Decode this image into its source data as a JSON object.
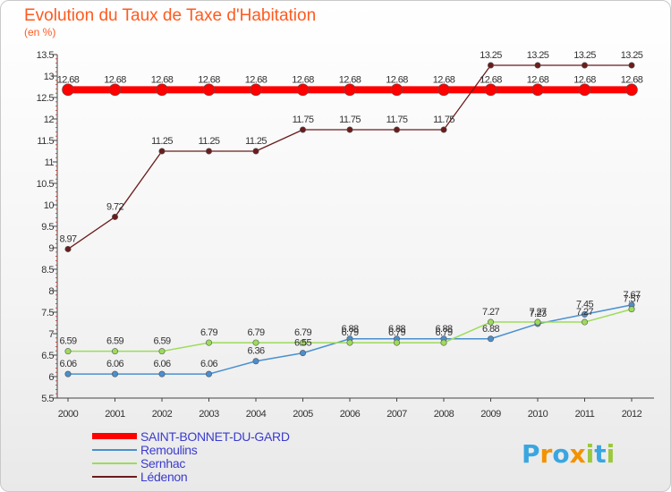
{
  "title": "Evolution du Taux de Taxe d'Habitation",
  "subtitle": "(en %)",
  "logo": {
    "letters": [
      "P",
      "r",
      "o",
      "x",
      "i",
      "t",
      "i"
    ],
    "colors": [
      "#3aa6e0",
      "#f39200",
      "#3aa6e0",
      "#f39200",
      "#9bc83c",
      "#3aa6e0",
      "#9bc83c"
    ]
  },
  "chart_data": {
    "type": "line",
    "x": [
      "2000",
      "2001",
      "2002",
      "2003",
      "2004",
      "2005",
      "2006",
      "2007",
      "2008",
      "2009",
      "2010",
      "2011",
      "2012"
    ],
    "ylim": [
      5.5,
      13.5
    ],
    "yticks": [
      "5.5",
      "6",
      "6.5",
      "7",
      "7.5",
      "8",
      "8.5",
      "9",
      "9.5",
      "10",
      "10.5",
      "11",
      "11.5",
      "12",
      "12.5",
      "13",
      "13.5"
    ],
    "grid": false,
    "legend_position": "bottom-left",
    "series": [
      {
        "name": "SAINT-BONNET-DU-GARD",
        "color": "#ff0000",
        "values": [
          12.68,
          12.68,
          12.68,
          12.68,
          12.68,
          12.68,
          12.68,
          12.68,
          12.68,
          12.68,
          12.68,
          12.68,
          12.68
        ],
        "labels": [
          "12.68",
          "12.68",
          "12.68",
          "12.68",
          "12.68",
          "12.68",
          "12.68",
          "12.68",
          "12.68",
          "12.68",
          "12.68",
          "12.68",
          "12.68"
        ]
      },
      {
        "name": "Remoulins",
        "color": "#4a8fcf",
        "values": [
          6.06,
          6.06,
          6.06,
          6.06,
          6.36,
          6.55,
          6.88,
          6.88,
          6.88,
          6.88,
          7.23,
          7.45,
          7.67
        ],
        "labels": [
          "6.06",
          "6.06",
          "6.06",
          "6.06",
          "6.36",
          "6.55",
          "6.88",
          "6.88",
          "6.88",
          "6.88",
          "7.23",
          "7.45",
          "7.67"
        ]
      },
      {
        "name": "Sernhac",
        "color": "#9cdc5a",
        "values": [
          6.59,
          6.59,
          6.59,
          6.79,
          6.79,
          6.79,
          6.79,
          6.79,
          6.79,
          7.27,
          7.27,
          7.27,
          7.57
        ],
        "labels": [
          "6.59",
          "6.59",
          "6.59",
          "6.79",
          "6.79",
          "6.79",
          "6.79",
          "6.79",
          "6.79",
          "7.27",
          "7.27",
          "7.27",
          "7.57"
        ]
      },
      {
        "name": "Lédenon",
        "color": "#6b1c1c",
        "values": [
          8.97,
          9.72,
          11.25,
          11.25,
          11.25,
          11.75,
          11.75,
          11.75,
          11.75,
          13.25,
          13.25,
          13.25,
          13.25
        ],
        "labels": [
          "8.97",
          "9.72",
          "11.25",
          "11.25",
          "11.25",
          "11.75",
          "11.75",
          "11.75",
          "11.75",
          "13.25",
          "13.25",
          "13.25",
          "13.25"
        ]
      }
    ]
  }
}
